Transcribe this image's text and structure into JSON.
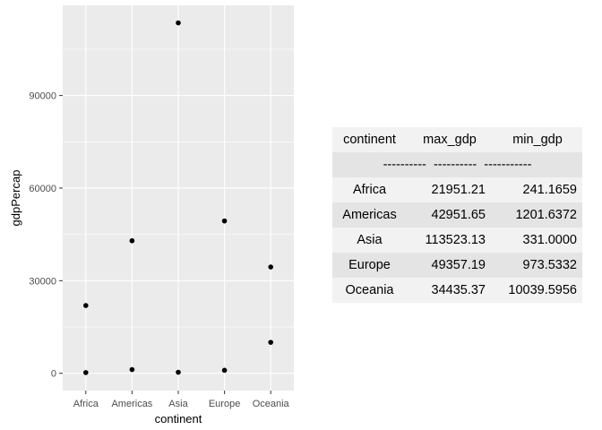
{
  "chart_data": {
    "type": "scatter",
    "xlabel": "continent",
    "ylabel": "gdpPercap",
    "categories": [
      "Africa",
      "Americas",
      "Asia",
      "Europe",
      "Oceania"
    ],
    "yticks": [
      0,
      30000,
      60000,
      90000
    ],
    "ytick_labels": [
      "0",
      "30000",
      "60000",
      "90000"
    ],
    "ylim": [
      -5600,
      119200
    ],
    "grid": true,
    "points": [
      {
        "x": "Africa",
        "y": 21951.21
      },
      {
        "x": "Africa",
        "y": 241.1659
      },
      {
        "x": "Americas",
        "y": 42951.65
      },
      {
        "x": "Americas",
        "y": 1201.6372
      },
      {
        "x": "Asia",
        "y": 113523.13
      },
      {
        "x": "Asia",
        "y": 331.0
      },
      {
        "x": "Europe",
        "y": 49357.19
      },
      {
        "x": "Europe",
        "y": 973.5332
      },
      {
        "x": "Oceania",
        "y": 34435.37
      },
      {
        "x": "Oceania",
        "y": 10039.5956
      }
    ]
  },
  "table": {
    "headers": [
      "continent",
      "max_gdp",
      "min_gdp"
    ],
    "separators": [
      "----------",
      "----------",
      "-----------"
    ],
    "rows": [
      {
        "continent": "Africa",
        "max_gdp": "21951.21",
        "min_gdp": "241.1659"
      },
      {
        "continent": "Americas",
        "max_gdp": "42951.65",
        "min_gdp": "1201.6372"
      },
      {
        "continent": "Asia",
        "max_gdp": "113523.13",
        "min_gdp": "331.0000"
      },
      {
        "continent": "Europe",
        "max_gdp": "49357.19",
        "min_gdp": "973.5332"
      },
      {
        "continent": "Oceania",
        "max_gdp": "34435.37",
        "min_gdp": "10039.5956"
      }
    ]
  },
  "colors": {
    "panel": "#ebebeb",
    "grid": "#ffffff",
    "point": "#000000"
  }
}
